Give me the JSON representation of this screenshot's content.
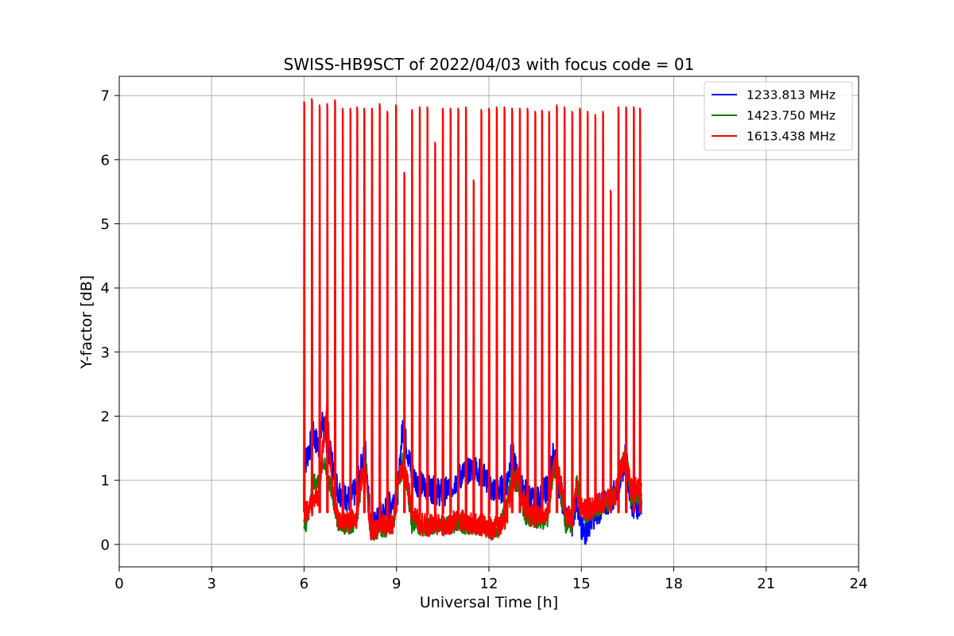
{
  "chart_data": {
    "type": "line",
    "title": "SWISS-HB9SCT of 2022/04/03 with focus code = 01",
    "xlabel": "Universal Time [h]",
    "ylabel": "Y-factor [dB]",
    "xlim": [
      0,
      24
    ],
    "ylim": [
      -0.35,
      7.3
    ],
    "xticks": [
      0,
      3,
      6,
      9,
      12,
      15,
      18,
      21,
      24
    ],
    "yticks": [
      0,
      1,
      2,
      3,
      4,
      5,
      6,
      7
    ],
    "grid": true,
    "legend_position": "top-right",
    "series": [
      {
        "name": "1233.813 MHz",
        "color": "#0000ff",
        "x": [
          6.0,
          6.05,
          6.3,
          6.5,
          6.6,
          6.75,
          6.9,
          7.1,
          7.3,
          7.5,
          7.7,
          7.85,
          8.0,
          8.15,
          8.3,
          8.5,
          8.7,
          8.9,
          9.05,
          9.2,
          9.3,
          9.5,
          9.7,
          9.9,
          10.2,
          10.5,
          10.8,
          11.0,
          11.2,
          11.5,
          11.8,
          12.1,
          12.4,
          12.6,
          12.75,
          12.95,
          13.1,
          13.3,
          13.5,
          13.7,
          13.9,
          14.1,
          14.25,
          14.5,
          14.7,
          14.85,
          15.0,
          15.15,
          15.3,
          15.5,
          15.7,
          15.9,
          16.1,
          16.3,
          16.45,
          16.6,
          16.8,
          16.95
        ],
        "y": [
          1.3,
          1.3,
          1.7,
          1.5,
          1.95,
          1.6,
          1.3,
          0.85,
          0.75,
          0.7,
          0.85,
          1.2,
          1.45,
          0.35,
          0.3,
          0.45,
          0.55,
          0.7,
          0.85,
          1.85,
          1.6,
          1.1,
          0.95,
          0.9,
          0.85,
          0.8,
          0.9,
          1.05,
          1.1,
          1.2,
          1.1,
          0.85,
          0.85,
          1.0,
          1.45,
          1.0,
          0.85,
          0.75,
          0.65,
          0.75,
          0.9,
          1.45,
          1.0,
          0.45,
          0.35,
          0.75,
          0.2,
          0.2,
          0.4,
          0.5,
          0.6,
          0.7,
          0.8,
          1.1,
          1.4,
          0.65,
          0.6,
          0.7
        ]
      },
      {
        "name": "1423.750 MHz",
        "color": "#008000",
        "x": [
          6.0,
          6.05,
          6.3,
          6.5,
          6.6,
          6.75,
          6.9,
          7.1,
          7.3,
          7.5,
          7.7,
          7.85,
          8.0,
          8.15,
          8.3,
          8.5,
          8.7,
          8.9,
          9.05,
          9.2,
          9.3,
          9.5,
          9.7,
          9.9,
          10.2,
          10.5,
          10.8,
          11.0,
          11.2,
          11.5,
          11.8,
          12.1,
          12.4,
          12.6,
          12.75,
          12.95,
          13.1,
          13.3,
          13.5,
          13.7,
          13.9,
          14.1,
          14.25,
          14.5,
          14.7,
          14.85,
          15.0,
          15.15,
          15.3,
          15.5,
          15.7,
          15.9,
          16.1,
          16.3,
          16.45,
          16.6,
          16.8,
          16.95
        ],
        "y": [
          0.3,
          0.3,
          0.95,
          1.0,
          1.3,
          1.1,
          0.8,
          0.35,
          0.3,
          0.3,
          0.35,
          0.9,
          1.3,
          0.2,
          0.2,
          0.25,
          0.25,
          0.3,
          0.9,
          1.3,
          1.1,
          0.3,
          0.3,
          0.25,
          0.3,
          0.3,
          0.3,
          0.35,
          0.3,
          0.3,
          0.25,
          0.2,
          0.3,
          0.7,
          1.1,
          0.9,
          0.55,
          0.35,
          0.4,
          0.35,
          0.4,
          1.2,
          1.05,
          0.3,
          0.3,
          1.0,
          0.55,
          0.45,
          0.5,
          0.55,
          0.6,
          0.65,
          0.75,
          1.2,
          1.45,
          0.75,
          0.75,
          0.8
        ]
      },
      {
        "name": "1613.438 MHz",
        "color": "#ff0000",
        "x": [
          6.0,
          6.05,
          6.3,
          6.5,
          6.6,
          6.75,
          6.9,
          7.1,
          7.3,
          7.5,
          7.7,
          7.85,
          8.0,
          8.15,
          8.3,
          8.5,
          8.7,
          8.9,
          9.05,
          9.2,
          9.3,
          9.5,
          9.7,
          9.9,
          10.2,
          10.5,
          10.8,
          11.0,
          11.2,
          11.5,
          11.8,
          12.1,
          12.4,
          12.6,
          12.75,
          12.95,
          13.1,
          13.3,
          13.5,
          13.7,
          13.9,
          14.1,
          14.25,
          14.5,
          14.7,
          14.85,
          15.0,
          15.15,
          15.3,
          15.5,
          15.7,
          15.9,
          16.1,
          16.3,
          16.45,
          16.6,
          16.8,
          16.95
        ],
        "y": [
          0.5,
          0.5,
          0.65,
          0.8,
          1.5,
          2.1,
          1.0,
          0.4,
          0.35,
          0.35,
          0.4,
          1.0,
          1.1,
          0.25,
          0.25,
          0.3,
          0.3,
          0.35,
          1.0,
          1.2,
          1.1,
          0.55,
          0.35,
          0.3,
          0.3,
          0.3,
          0.35,
          0.4,
          0.35,
          0.3,
          0.3,
          0.25,
          0.3,
          0.5,
          0.95,
          1.05,
          0.7,
          0.45,
          0.45,
          0.45,
          0.5,
          1.25,
          1.15,
          0.45,
          0.4,
          0.85,
          0.55,
          0.55,
          0.55,
          0.6,
          0.65,
          0.7,
          0.75,
          1.25,
          1.35,
          0.85,
          0.9,
          0.95
        ]
      }
    ],
    "red_peaks": [
      [
        6.0,
        6.9
      ],
      [
        6.25,
        6.95
      ],
      [
        6.5,
        6.85
      ],
      [
        6.75,
        6.87
      ],
      [
        7.0,
        6.93
      ],
      [
        7.25,
        6.8
      ],
      [
        7.5,
        6.8
      ],
      [
        7.72,
        6.82
      ],
      [
        7.95,
        6.8
      ],
      [
        8.2,
        6.8
      ],
      [
        8.45,
        6.87
      ],
      [
        8.7,
        6.75
      ],
      [
        8.98,
        6.85
      ],
      [
        9.25,
        5.8
      ],
      [
        9.5,
        6.78
      ],
      [
        9.75,
        6.82
      ],
      [
        10.0,
        6.82
      ],
      [
        10.25,
        6.27
      ],
      [
        10.5,
        6.8
      ],
      [
        10.75,
        6.8
      ],
      [
        11.0,
        6.8
      ],
      [
        11.25,
        6.82
      ],
      [
        11.5,
        5.68
      ],
      [
        11.75,
        6.78
      ],
      [
        12.0,
        6.8
      ],
      [
        12.25,
        6.82
      ],
      [
        12.5,
        6.82
      ],
      [
        12.75,
        6.8
      ],
      [
        13.0,
        6.8
      ],
      [
        13.25,
        6.8
      ],
      [
        13.5,
        6.75
      ],
      [
        13.72,
        6.77
      ],
      [
        13.95,
        6.75
      ],
      [
        14.2,
        6.85
      ],
      [
        14.45,
        6.82
      ],
      [
        14.7,
        6.75
      ],
      [
        14.95,
        6.8
      ],
      [
        15.2,
        6.75
      ],
      [
        15.45,
        6.7
      ],
      [
        15.7,
        6.75
      ],
      [
        15.95,
        5.52
      ],
      [
        16.2,
        6.82
      ],
      [
        16.45,
        6.82
      ],
      [
        16.7,
        6.82
      ],
      [
        16.9,
        6.8
      ]
    ]
  }
}
